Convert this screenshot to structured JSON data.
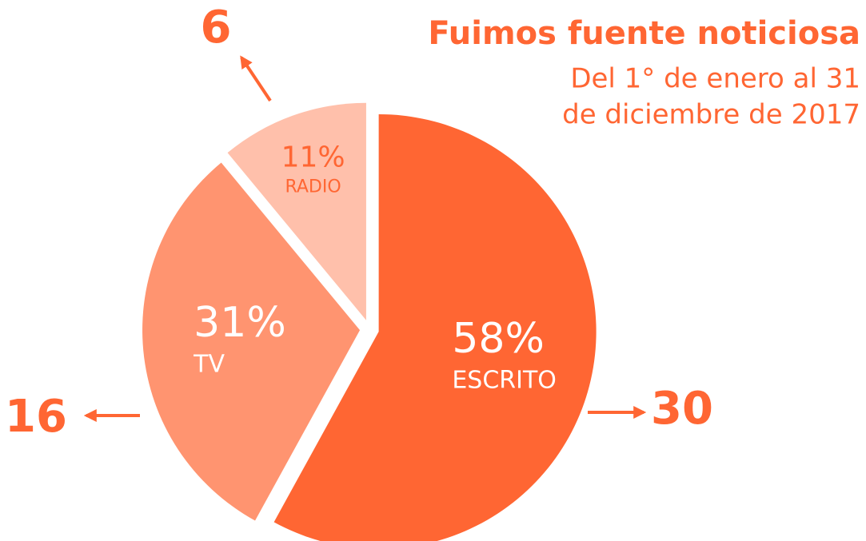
{
  "chart_data": {
    "type": "pie",
    "title": "Fuimos fuente noticiosa",
    "subtitle": [
      "Del 1° de enero al 31",
      "de diciembre de 2017"
    ],
    "categories": [
      "ESCRITO",
      "TV",
      "RADIO"
    ],
    "values": [
      58,
      31,
      11
    ],
    "value_labels": [
      "58%",
      "31%",
      "11%"
    ],
    "counts": [
      30,
      16,
      6
    ],
    "colors": [
      "#ff6633",
      "#ff9470",
      "#ffc0ab"
    ]
  }
}
